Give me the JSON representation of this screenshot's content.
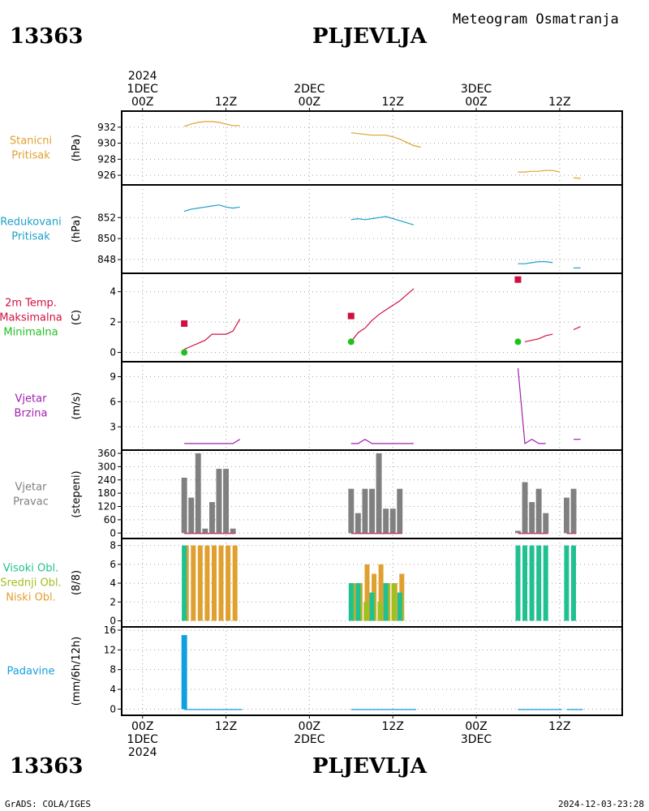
{
  "header": {
    "station_id": "13363",
    "station_name": "PLJEVLJA",
    "subtitle": "Meteogram Osmatranja"
  },
  "footer": {
    "credit": "GrADS: COLA/IGES",
    "timestamp": "2024-12-03-23:28"
  },
  "time_axis": {
    "top_labels": [
      {
        "lines": [
          "2024",
          "1DEC",
          "00Z"
        ]
      },
      {
        "lines": [
          "12Z"
        ]
      },
      {
        "lines": [
          "2DEC",
          "00Z"
        ]
      },
      {
        "lines": [
          "12Z"
        ]
      },
      {
        "lines": [
          "3DEC",
          "00Z"
        ]
      },
      {
        "lines": [
          "12Z"
        ]
      }
    ],
    "bottom_labels": [
      {
        "lines": [
          "00Z",
          "1DEC",
          "2024"
        ]
      },
      {
        "lines": [
          "12Z"
        ]
      },
      {
        "lines": [
          "00Z",
          "2DEC"
        ]
      },
      {
        "lines": [
          "12Z"
        ]
      },
      {
        "lines": [
          "00Z",
          "3DEC"
        ]
      },
      {
        "lines": [
          "12Z"
        ]
      }
    ],
    "tick_hours": [
      0,
      12,
      24,
      36,
      48,
      60
    ],
    "range_hours": [
      -3,
      69
    ]
  },
  "colors": {
    "pressure": "#e0a030",
    "reduced_pressure": "#1ea0c8",
    "tmax": "#d01040",
    "tmin": "#20c020",
    "wind": "#a020b0",
    "bars_gray": "#808080",
    "cloud_high": "#20c090",
    "cloud_mid": "#a0c020",
    "cloud_low": "#e0a030",
    "precip": "#10a0e0",
    "grid": "#a0a0a0"
  },
  "chart_data": [
    {
      "type": "line",
      "panel_labels": [
        "Stanicni",
        "Pritisak"
      ],
      "ylabel": "(hPa)",
      "ylim": [
        925.2,
        933.6
      ],
      "yticks": [
        926,
        928,
        930,
        932
      ],
      "series": [
        {
          "color_key": "pressure",
          "segments": [
            [
              [
                6,
                932.1
              ],
              [
                7,
                932.4
              ],
              [
                8,
                932.6
              ],
              [
                9,
                932.7
              ],
              [
                10,
                932.7
              ],
              [
                11,
                932.6
              ],
              [
                12,
                932.4
              ],
              [
                13,
                932.2
              ],
              [
                14,
                932.2
              ]
            ],
            [
              [
                30,
                931.3
              ],
              [
                31,
                931.2
              ],
              [
                32,
                931.1
              ],
              [
                33,
                931.0
              ],
              [
                34,
                931.0
              ],
              [
                35,
                931.0
              ],
              [
                36,
                930.8
              ],
              [
                37,
                930.5
              ],
              [
                38,
                930.1
              ],
              [
                39,
                929.7
              ],
              [
                40,
                929.5
              ]
            ],
            [
              [
                54,
                926.4
              ],
              [
                55,
                926.4
              ],
              [
                56,
                926.5
              ],
              [
                57,
                926.5
              ],
              [
                58,
                926.6
              ],
              [
                59,
                926.6
              ],
              [
                60,
                926.4
              ]
            ],
            [
              [
                62,
                925.7
              ],
              [
                63,
                925.6
              ]
            ]
          ]
        }
      ]
    },
    {
      "type": "line",
      "panel_labels": [
        "Redukovani",
        "Pritisak"
      ],
      "ylabel": "(hPa)",
      "ylim": [
        847.0,
        854.8
      ],
      "yticks": [
        848,
        850,
        852
      ],
      "series": [
        {
          "color_key": "reduced_pressure",
          "segments": [
            [
              [
                6,
                852.6
              ],
              [
                7,
                852.8
              ],
              [
                8,
                852.9
              ],
              [
                9,
                853.0
              ],
              [
                10,
                853.1
              ],
              [
                11,
                853.2
              ],
              [
                12,
                853.0
              ],
              [
                13,
                852.9
              ],
              [
                14,
                853.0
              ]
            ],
            [
              [
                30,
                851.8
              ],
              [
                31,
                851.9
              ],
              [
                32,
                851.8
              ],
              [
                33,
                851.9
              ],
              [
                34,
                852.0
              ],
              [
                35,
                852.1
              ],
              [
                36,
                851.9
              ],
              [
                37,
                851.7
              ],
              [
                38,
                851.5
              ],
              [
                39,
                851.3
              ]
            ],
            [
              [
                54,
                847.6
              ],
              [
                55,
                847.6
              ],
              [
                56,
                847.7
              ],
              [
                57,
                847.8
              ],
              [
                58,
                847.8
              ],
              [
                59,
                847.7
              ]
            ],
            [
              [
                62,
                847.2
              ],
              [
                63,
                847.2
              ]
            ]
          ]
        }
      ]
    },
    {
      "type": "line",
      "panel_labels": [
        "2m Temp.",
        "Maksimalna",
        "Minimalna"
      ],
      "label_color_keys": [
        "tmax",
        "tmax",
        "tmin"
      ],
      "ylabel": "(C)",
      "ylim": [
        -0.4,
        5.0
      ],
      "yticks": [
        0,
        2,
        4
      ],
      "series": [
        {
          "color_key": "tmax",
          "segments": [
            [
              [
                6,
                0.2
              ],
              [
                7,
                0.4
              ],
              [
                8,
                0.6
              ],
              [
                9,
                0.8
              ],
              [
                10,
                1.2
              ],
              [
                11,
                1.2
              ],
              [
                12,
                1.2
              ],
              [
                13,
                1.4
              ],
              [
                14,
                2.2
              ]
            ],
            [
              [
                30,
                0.7
              ],
              [
                31,
                1.3
              ],
              [
                32,
                1.6
              ],
              [
                33,
                2.1
              ],
              [
                34,
                2.5
              ],
              [
                35,
                2.8
              ],
              [
                36,
                3.1
              ],
              [
                37,
                3.4
              ],
              [
                38,
                3.8
              ],
              [
                39,
                4.2
              ]
            ],
            [
              [
                55,
                0.7
              ],
              [
                56,
                0.8
              ],
              [
                57,
                0.9
              ],
              [
                58,
                1.1
              ],
              [
                59,
                1.2
              ]
            ],
            [
              [
                62,
                1.5
              ],
              [
                63,
                1.7
              ]
            ]
          ]
        }
      ],
      "markers": [
        {
          "color_key": "tmax",
          "shape": "square",
          "points": [
            [
              6,
              1.9
            ],
            [
              30,
              2.4
            ],
            [
              54,
              4.8
            ]
          ]
        },
        {
          "color_key": "tmin",
          "shape": "circle",
          "points": [
            [
              6,
              0.0
            ],
            [
              30,
              0.7
            ],
            [
              54,
              0.7
            ]
          ]
        }
      ]
    },
    {
      "type": "line",
      "panel_labels": [
        "Vjetar",
        "Brzina"
      ],
      "ylabel": "(m/s)",
      "ylim": [
        0.6,
        10.4
      ],
      "yticks": [
        3,
        6,
        9
      ],
      "series": [
        {
          "color_key": "wind",
          "segments": [
            [
              [
                6,
                1.0
              ],
              [
                7,
                1.0
              ],
              [
                8,
                1.0
              ],
              [
                9,
                1.0
              ],
              [
                10,
                1.0
              ],
              [
                11,
                1.0
              ],
              [
                12,
                1.0
              ],
              [
                13,
                1.0
              ],
              [
                14,
                1.5
              ]
            ],
            [
              [
                30,
                1.0
              ],
              [
                31,
                1.0
              ],
              [
                32,
                1.5
              ],
              [
                33,
                1.0
              ],
              [
                34,
                1.0
              ],
              [
                35,
                1.0
              ],
              [
                36,
                1.0
              ],
              [
                37,
                1.0
              ],
              [
                38,
                1.0
              ],
              [
                39,
                1.0
              ]
            ],
            [
              [
                54,
                10.0
              ],
              [
                55,
                1.0
              ],
              [
                56,
                1.5
              ],
              [
                57,
                1.0
              ],
              [
                58,
                1.0
              ]
            ],
            [
              [
                62,
                1.5
              ],
              [
                63,
                1.5
              ]
            ]
          ]
        }
      ]
    },
    {
      "type": "bar",
      "panel_labels": [
        "Vjetar",
        "Pravac"
      ],
      "ylabel": "(stepeni)",
      "ylim": [
        -10,
        360
      ],
      "yticks": [
        0,
        60,
        120,
        180,
        240,
        300,
        360
      ],
      "bar_width_hours": 0.8,
      "series": [
        {
          "color_key": "bars_gray",
          "points": [
            [
              6,
              250
            ],
            [
              7,
              160
            ],
            [
              8,
              360
            ],
            [
              9,
              20
            ],
            [
              10,
              140
            ],
            [
              11,
              290
            ],
            [
              12,
              290
            ],
            [
              13,
              20
            ],
            [
              30,
              200
            ],
            [
              31,
              90
            ],
            [
              32,
              200
            ],
            [
              33,
              200
            ],
            [
              34,
              360
            ],
            [
              35,
              110
            ],
            [
              36,
              110
            ],
            [
              37,
              200
            ],
            [
              54,
              10
            ],
            [
              55,
              230
            ],
            [
              56,
              140
            ],
            [
              57,
              200
            ],
            [
              58,
              90
            ],
            [
              61,
              160
            ],
            [
              62,
              200
            ]
          ]
        }
      ],
      "baseline_segments": [
        [
          6,
          13
        ],
        [
          30,
          37
        ],
        [
          54,
          58
        ],
        [
          61,
          62
        ]
      ]
    },
    {
      "type": "bar",
      "panel_labels": [
        "Visoki Obl.",
        "Srednji Obl.",
        "Niski Obl."
      ],
      "label_color_keys": [
        "cloud_high",
        "cloud_mid",
        "cloud_low"
      ],
      "ylabel": "(8/8)",
      "ylim": [
        -0.3,
        8.4
      ],
      "yticks": [
        0,
        2,
        4,
        6,
        8
      ],
      "bar_width_hours": 0.7,
      "series": [
        {
          "name": "Niski Obl.",
          "color_key": "cloud_low",
          "offset": 0.3,
          "points": [
            [
              6,
              8
            ],
            [
              7,
              8
            ],
            [
              8,
              8
            ],
            [
              9,
              8
            ],
            [
              10,
              8
            ],
            [
              11,
              8
            ],
            [
              12,
              8
            ],
            [
              13,
              8
            ],
            [
              30,
              4
            ],
            [
              31,
              4
            ],
            [
              32,
              6
            ],
            [
              33,
              5
            ],
            [
              34,
              6
            ],
            [
              35,
              4
            ],
            [
              36,
              4
            ],
            [
              37,
              5
            ]
          ]
        },
        {
          "name": "Srednji Obl.",
          "color_key": "cloud_mid",
          "offset": 0.15,
          "points": [
            [
              30,
              4
            ],
            [
              31,
              4
            ],
            [
              32,
              2
            ],
            [
              33,
              3
            ],
            [
              34,
              2
            ],
            [
              35,
              4
            ],
            [
              36,
              4
            ],
            [
              37,
              3
            ]
          ]
        },
        {
          "name": "Visoki Obl.",
          "color_key": "cloud_high",
          "offset": 0.0,
          "points": [
            [
              6,
              8
            ],
            [
              30,
              4
            ],
            [
              31,
              4
            ],
            [
              33,
              3
            ],
            [
              35,
              4
            ],
            [
              37,
              3
            ],
            [
              54,
              8
            ],
            [
              55,
              8
            ],
            [
              56,
              8
            ],
            [
              57,
              8
            ],
            [
              58,
              8
            ],
            [
              61,
              8
            ],
            [
              62,
              8
            ]
          ]
        }
      ]
    },
    {
      "type": "bar",
      "panel_labels": [
        "Padavine"
      ],
      "label_color_keys": [
        "precip"
      ],
      "ylabel": "(mm/6h/12h)",
      "ylim": [
        -0.6,
        16
      ],
      "yticks": [
        0,
        4,
        8,
        12,
        16
      ],
      "bar_width_hours": 0.8,
      "series": [
        {
          "color_key": "precip",
          "points": [
            [
              6,
              15
            ]
          ]
        }
      ],
      "baseline_segments": [
        [
          6,
          14
        ],
        [
          30,
          39
        ],
        [
          54,
          60
        ],
        [
          61,
          63
        ]
      ]
    }
  ]
}
